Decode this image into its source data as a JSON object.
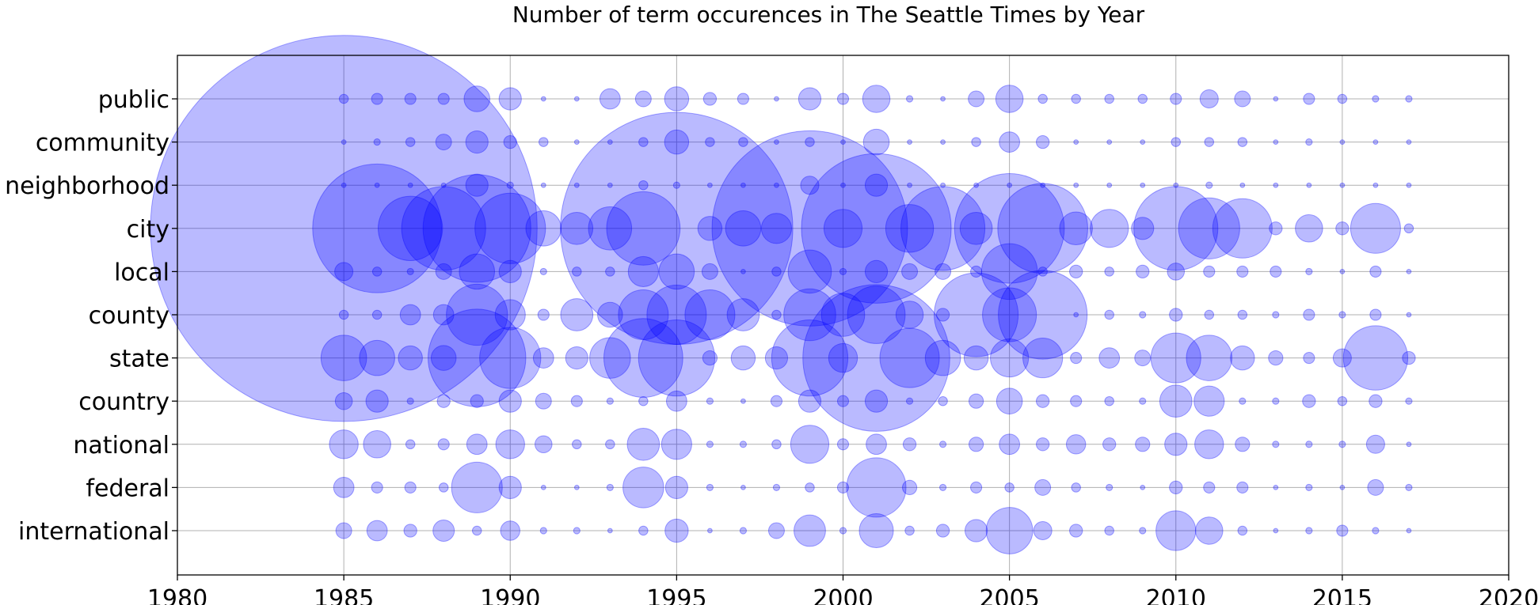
{
  "chart_data": {
    "type": "scatter",
    "title": "Number of term occurences in The Seattle Times by Year",
    "xlabel": "",
    "ylabel": "",
    "xlim": [
      1980,
      2020
    ],
    "xticks": [
      1980,
      1985,
      1990,
      1995,
      2000,
      2005,
      2010,
      2015,
      2020
    ],
    "grid": true,
    "legend": "none",
    "marker_color": "#0000ff",
    "marker_alpha": 0.27,
    "categories": [
      "public",
      "community",
      "neighborhood",
      "city",
      "local",
      "county",
      "state",
      "country",
      "national",
      "federal",
      "international"
    ],
    "years": [
      1985,
      1986,
      1987,
      1988,
      1989,
      1990,
      1991,
      1992,
      1993,
      1994,
      1995,
      1996,
      1997,
      1998,
      1999,
      2000,
      2001,
      2002,
      2003,
      2004,
      2005,
      2006,
      2007,
      2008,
      2009,
      2010,
      2011,
      2012,
      2013,
      2014,
      2015,
      2016,
      2017
    ],
    "size_note": "sizes are relative marker area units (visual count magnitude)",
    "series": [
      {
        "name": "public",
        "sizes": [
          2,
          3,
          3,
          3,
          16,
          12,
          0.5,
          0.5,
          10,
          6,
          14,
          4,
          3,
          0.5,
          12,
          3,
          18,
          1,
          0.5,
          6,
          18,
          2,
          2,
          2,
          2,
          3,
          8,
          6,
          0.5,
          3,
          2,
          1,
          1
        ]
      },
      {
        "name": "community",
        "sizes": [
          0.5,
          1,
          2,
          6,
          12,
          4,
          2,
          0.5,
          0.5,
          2,
          14,
          2,
          2,
          0.5,
          2,
          0.5,
          16,
          0.5,
          0.5,
          2,
          10,
          4,
          0.5,
          0.5,
          0.5,
          2,
          2,
          2,
          0.5,
          1,
          0.5,
          0.5,
          0.5
        ]
      },
      {
        "name": "neighborhood",
        "sizes": [
          0.5,
          0.5,
          0.5,
          0.5,
          12,
          1,
          0.5,
          0.5,
          0.5,
          2,
          1,
          0.5,
          0.5,
          0.5,
          8,
          0.5,
          12,
          0.5,
          0.5,
          0.5,
          0.5,
          0.5,
          0.5,
          0.5,
          0.5,
          0.5,
          1,
          0.5,
          0.5,
          0.5,
          0.5,
          0.5,
          0.5
        ]
      },
      {
        "name": "city",
        "sizes": [
          3600,
          400,
          100,
          170,
          280,
          120,
          30,
          25,
          45,
          130,
          1300,
          14,
          30,
          22,
          920,
          35,
          540,
          55,
          170,
          25,
          290,
          195,
          26,
          35,
          12,
          170,
          90,
          85,
          4,
          18,
          4,
          60,
          2
        ]
      },
      {
        "name": "local",
        "sizes": [
          8,
          2,
          1,
          6,
          30,
          12,
          1,
          2,
          2,
          22,
          30,
          6,
          0.5,
          2,
          45,
          1,
          12,
          6,
          6,
          3,
          75,
          2,
          4,
          2,
          4,
          7,
          3,
          3,
          3,
          1,
          0.5,
          3,
          0.5
        ]
      },
      {
        "name": "county",
        "sizes": [
          2,
          2,
          10,
          10,
          90,
          22,
          3,
          25,
          15,
          60,
          85,
          60,
          25,
          2,
          65,
          45,
          80,
          18,
          4,
          170,
          70,
          190,
          0.5,
          2,
          1,
          4,
          2,
          2,
          1,
          3,
          1,
          3,
          0.5
        ]
      },
      {
        "name": "state",
        "sizes": [
          50,
          30,
          14,
          15,
          230,
          90,
          10,
          12,
          40,
          150,
          140,
          5,
          14,
          12,
          140,
          20,
          520,
          85,
          30,
          14,
          35,
          38,
          3,
          10,
          6,
          60,
          50,
          14,
          5,
          3,
          8,
          100,
          4
        ]
      },
      {
        "name": "country",
        "sizes": [
          7,
          12,
          1,
          4,
          4,
          12,
          6,
          3,
          1,
          2,
          10,
          1,
          0.5,
          3,
          12,
          3,
          12,
          1,
          2,
          5,
          16,
          4,
          3,
          2,
          1,
          25,
          22,
          1,
          1,
          4,
          2,
          4,
          1
        ]
      },
      {
        "name": "national",
        "sizes": [
          20,
          18,
          2,
          3,
          10,
          20,
          7,
          2,
          2,
          25,
          22,
          1,
          1,
          2,
          35,
          3,
          10,
          4,
          1,
          5,
          10,
          4,
          9,
          4,
          5,
          12,
          20,
          5,
          1,
          1,
          1,
          8,
          0.5
        ]
      },
      {
        "name": "federal",
        "sizes": [
          10,
          3,
          3,
          2,
          62,
          12,
          0.5,
          0.5,
          1,
          40,
          12,
          1,
          0.5,
          1,
          2,
          3,
          85,
          5,
          1,
          3,
          2,
          6,
          2,
          1,
          0.5,
          4,
          3,
          3,
          0.5,
          1,
          0.5,
          6,
          1
        ]
      },
      {
        "name": "international",
        "sizes": [
          6,
          10,
          4,
          11,
          2,
          9,
          1,
          1,
          0.5,
          2,
          13,
          0.5,
          1,
          6,
          24,
          1,
          28,
          2,
          4,
          12,
          52,
          8,
          4,
          2,
          1,
          38,
          18,
          2,
          0.5,
          1,
          3,
          1,
          0.5
        ]
      }
    ]
  }
}
